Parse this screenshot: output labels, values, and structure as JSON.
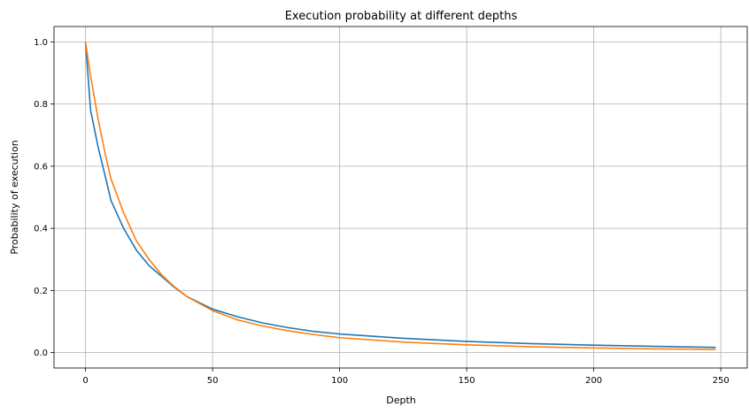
{
  "chart_data": {
    "type": "line",
    "title": "Execution probability at different depths",
    "xlabel": "Depth",
    "ylabel": "Probability of execution",
    "xlim": [
      -12.4,
      260.4
    ],
    "ylim": [
      -0.0495,
      1.0495
    ],
    "xticks": [
      0,
      50,
      100,
      150,
      200,
      250
    ],
    "yticks": [
      0.0,
      0.2,
      0.4,
      0.6,
      0.8,
      1.0
    ],
    "xtick_labels": [
      "0",
      "50",
      "100",
      "150",
      "200",
      "250"
    ],
    "ytick_labels": [
      "0.0",
      "0.2",
      "0.4",
      "0.6",
      "0.8",
      "1.0"
    ],
    "grid": true,
    "legend": "none",
    "series": [
      {
        "color": "#1f77b4",
        "x": [
          0,
          2,
          5,
          8,
          10,
          15,
          20,
          25,
          30,
          35,
          40,
          50,
          60,
          70,
          80,
          90,
          100,
          125,
          150,
          175,
          200,
          225,
          248
        ],
        "y": [
          1.0,
          0.78,
          0.66,
          0.56,
          0.49,
          0.4,
          0.33,
          0.28,
          0.245,
          0.21,
          0.18,
          0.14,
          0.115,
          0.095,
          0.08,
          0.068,
          0.06,
          0.046,
          0.036,
          0.029,
          0.024,
          0.02,
          0.017
        ]
      },
      {
        "color": "#ff7f0e",
        "x": [
          0,
          2,
          5,
          8,
          10,
          15,
          20,
          25,
          30,
          35,
          40,
          50,
          60,
          70,
          80,
          90,
          100,
          125,
          150,
          175,
          200,
          225,
          248
        ],
        "y": [
          1.0,
          0.89,
          0.75,
          0.63,
          0.56,
          0.45,
          0.36,
          0.3,
          0.25,
          0.212,
          0.18,
          0.135,
          0.105,
          0.085,
          0.07,
          0.058,
          0.048,
          0.034,
          0.025,
          0.019,
          0.015,
          0.012,
          0.01
        ]
      }
    ]
  }
}
